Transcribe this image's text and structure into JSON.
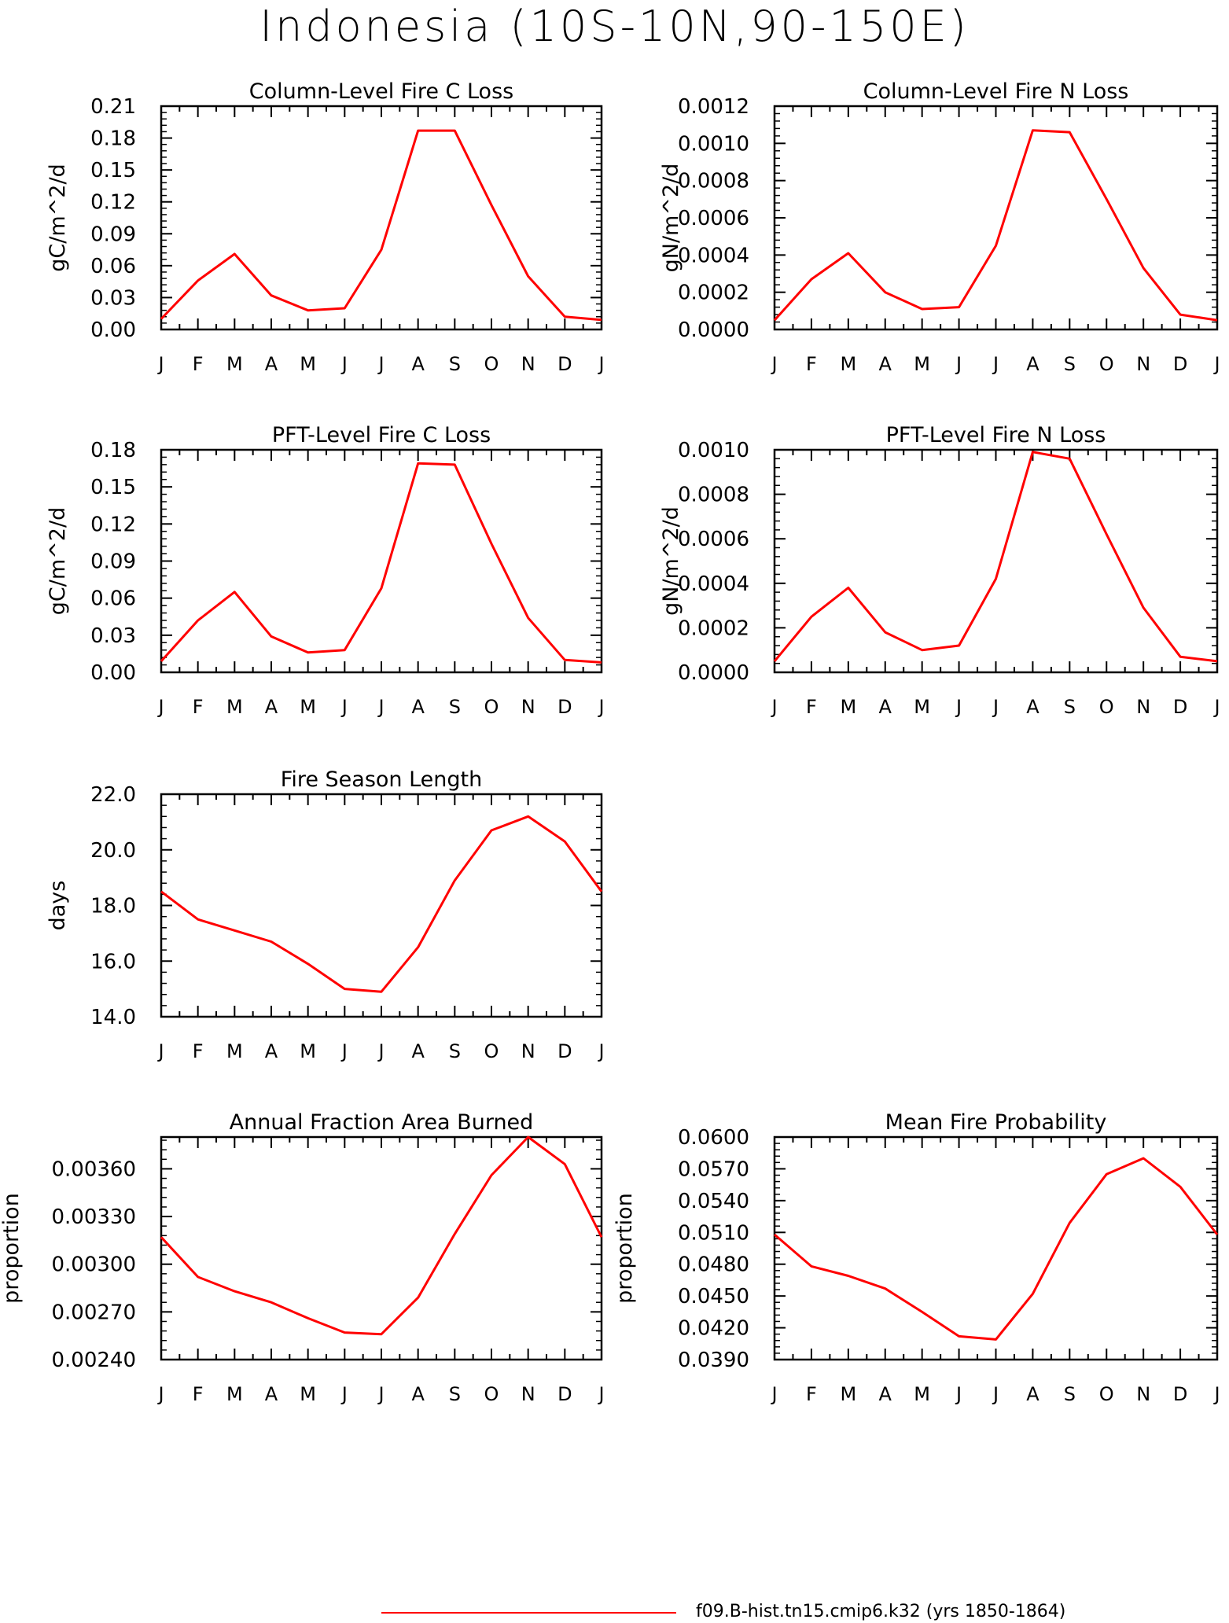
{
  "page_title": "Indonesia (10S-10N,90-150E)",
  "line_color": "#ff0000",
  "legend": {
    "label": "f09.B-hist.tn15.cmip6.k32 (yrs 1850-1864)"
  },
  "months": [
    "J",
    "F",
    "M",
    "A",
    "M",
    "J",
    "J",
    "A",
    "S",
    "O",
    "N",
    "D",
    "J"
  ],
  "chart_data": [
    {
      "type": "line",
      "title": "Column-Level Fire C Loss",
      "ylabel": "gC/m^2/d",
      "ylim": [
        0,
        0.21
      ],
      "yticks": [
        "0.00",
        "0.03",
        "0.06",
        "0.09",
        "0.12",
        "0.15",
        "0.18",
        "0.21"
      ],
      "values": [
        0.01,
        0.046,
        0.071,
        0.032,
        0.018,
        0.02,
        0.075,
        0.187,
        0.187,
        0.117,
        0.05,
        0.012,
        0.009
      ]
    },
    {
      "type": "line",
      "title": "Column-Level Fire N Loss",
      "ylabel": "gN/m^2/d",
      "ylim": [
        0,
        0.0012
      ],
      "yticks": [
        "0.0000",
        "0.0002",
        "0.0004",
        "0.0006",
        "0.0008",
        "0.0010",
        "0.0012"
      ],
      "values": [
        5e-05,
        0.00027,
        0.00041,
        0.0002,
        0.00011,
        0.00012,
        0.00045,
        0.00107,
        0.00106,
        0.0007,
        0.00033,
        8e-05,
        5e-05
      ]
    },
    {
      "type": "line",
      "title": "PFT-Level Fire C Loss",
      "ylabel": "gC/m^2/d",
      "ylim": [
        0,
        0.18
      ],
      "yticks": [
        "0.00",
        "0.03",
        "0.06",
        "0.09",
        "0.12",
        "0.15",
        "0.18"
      ],
      "values": [
        0.009,
        0.042,
        0.065,
        0.029,
        0.016,
        0.018,
        0.068,
        0.169,
        0.168,
        0.104,
        0.044,
        0.01,
        0.008
      ]
    },
    {
      "type": "line",
      "title": "PFT-Level Fire N Loss",
      "ylabel": "gN/m^2/d",
      "ylim": [
        0,
        0.001
      ],
      "yticks": [
        "0.0000",
        "0.0002",
        "0.0004",
        "0.0006",
        "0.0008",
        "0.0010"
      ],
      "values": [
        5e-05,
        0.00025,
        0.00038,
        0.00018,
        0.0001,
        0.00012,
        0.00042,
        0.00099,
        0.00096,
        0.00062,
        0.00029,
        7e-05,
        5e-05
      ]
    },
    {
      "type": "line",
      "title": "Fire Season Length",
      "ylabel": "days",
      "ylim": [
        14,
        22
      ],
      "yticks": [
        "14.0",
        "16.0",
        "18.0",
        "20.0",
        "22.0"
      ],
      "values": [
        18.5,
        17.5,
        17.1,
        16.7,
        15.9,
        15.0,
        14.9,
        16.5,
        18.9,
        20.7,
        21.2,
        20.3,
        18.5
      ]
    },
    {
      "type": "line",
      "title": "Annual Fraction Area Burned",
      "ylabel": "proportion",
      "ylim": [
        0.0024,
        0.0038
      ],
      "yticks": [
        "0.00240",
        "0.00270",
        "0.00300",
        "0.00330",
        "0.00360"
      ],
      "values": [
        0.00317,
        0.00292,
        0.00283,
        0.00276,
        0.00266,
        0.00257,
        0.00256,
        0.00279,
        0.00319,
        0.00356,
        0.0038,
        0.00363,
        0.00317
      ]
    },
    {
      "type": "line",
      "title": "Mean Fire Probability",
      "ylabel": "proportion",
      "ylim": [
        0.039,
        0.06
      ],
      "yticks": [
        "0.0390",
        "0.0420",
        "0.0450",
        "0.0480",
        "0.0510",
        "0.0540",
        "0.0570",
        "0.0600"
      ],
      "values": [
        0.0508,
        0.0478,
        0.0469,
        0.0457,
        0.0435,
        0.0412,
        0.0409,
        0.0452,
        0.0519,
        0.0565,
        0.058,
        0.0553,
        0.0508
      ]
    }
  ]
}
